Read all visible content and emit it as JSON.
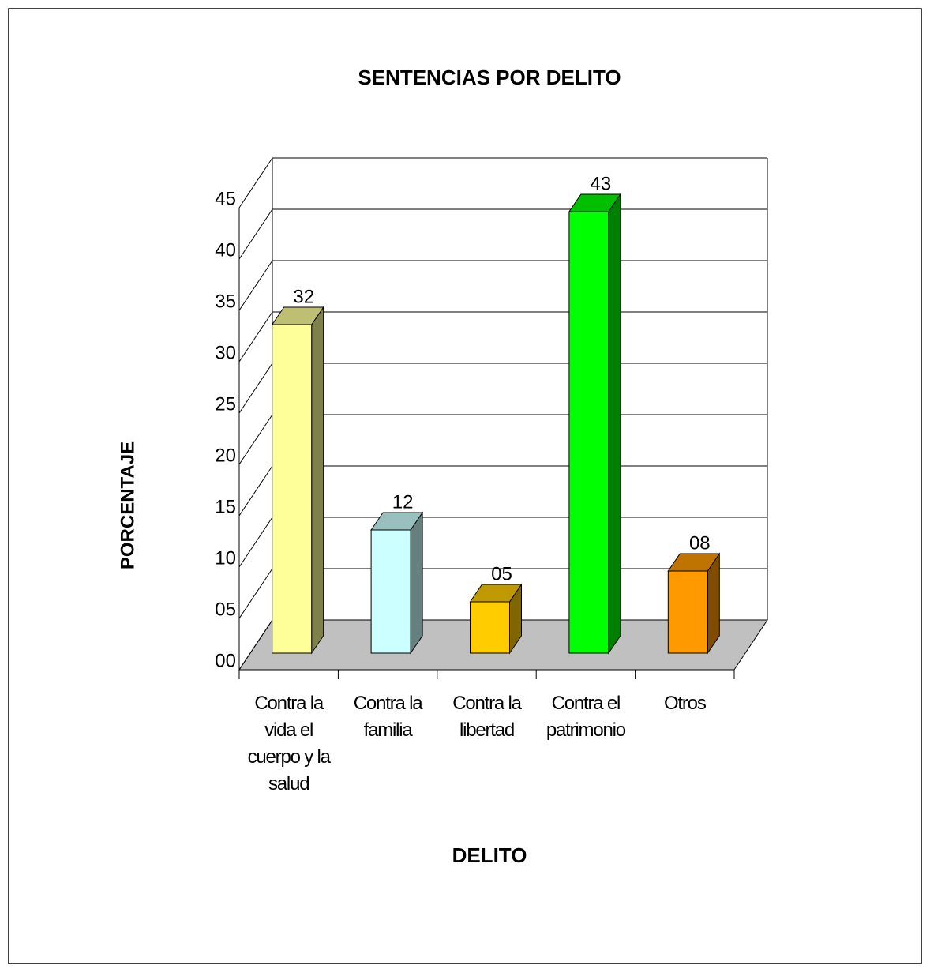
{
  "chart_data": {
    "type": "bar",
    "title": "SENTENCIAS POR DELITO",
    "x_label": "DELITO",
    "y_label": "PORCENTAJE",
    "categories": [
      "Contra la vida el cuerpo y la salud",
      "Contra la familia",
      "Contra la libertad",
      "Contra el patrimonio",
      "Otros"
    ],
    "values": [
      32,
      12,
      5,
      43,
      8
    ],
    "value_labels": [
      "32",
      "12",
      "05",
      "43",
      "08"
    ],
    "colors": [
      "#ffff99",
      "#ccffff",
      "#ffcc00",
      "#00ff00",
      "#ff9900"
    ],
    "ylim": [
      0,
      45
    ],
    "yticks": [
      {
        "value": 0,
        "label": "00"
      },
      {
        "value": 5,
        "label": "05"
      },
      10,
      15,
      20,
      25,
      30,
      35,
      40,
      45
    ],
    "grid": true
  }
}
